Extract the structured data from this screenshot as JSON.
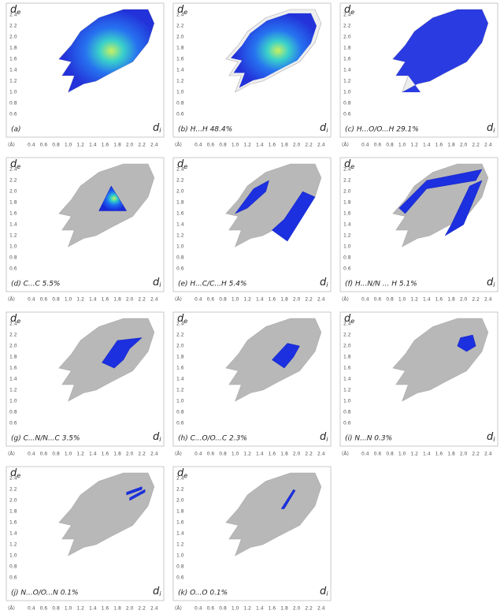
{
  "axes": {
    "x_unit": "(Å)",
    "x_ticks": [
      "0.4",
      "0.6",
      "0.8",
      "1.0",
      "1.2",
      "1.4",
      "1.6",
      "1.8",
      "2.0",
      "2.2",
      "2.4"
    ],
    "y_ticks": [
      "0.6",
      "0.8",
      "1.0",
      "1.2",
      "1.4",
      "1.6",
      "1.8",
      "2.0",
      "2.2",
      "2.4"
    ],
    "y_label": {
      "main": "d",
      "sub": "e"
    },
    "x_label": {
      "main": "d",
      "sub": "i"
    }
  },
  "panels": [
    {
      "label": "(a)"
    },
    {
      "label": "(b)  H...H  48.4%"
    },
    {
      "label": "(c)  H...O/O...H  29.1%"
    },
    {
      "label": "(d)  C...C  5.5%"
    },
    {
      "label": "(e)  H...C/C...H  5.4%"
    },
    {
      "label": "(f)  H...N/N ... H  5.1%"
    },
    {
      "label": "(g)  C...N/N...C  3.5%"
    },
    {
      "label": "(h)  C...O/O...C  2.3%"
    },
    {
      "label": "(i)  N...N  0.3%"
    },
    {
      "label": "(j)  N...O/O...N  0.1%"
    },
    {
      "label": "(k)  O...O  0.1%"
    }
  ]
}
